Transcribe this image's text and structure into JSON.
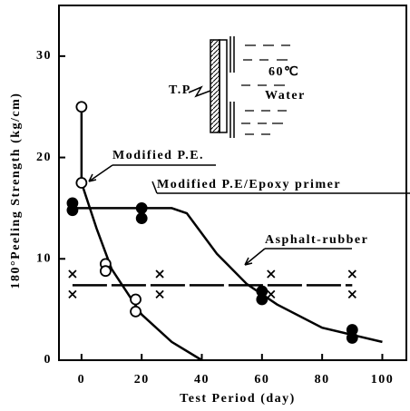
{
  "chart_data": {
    "type": "scatter",
    "xlabel": "Test Period (day)",
    "ylabel": "180°Peeling Strength (kg/cm)",
    "xlim": [
      -7.5,
      108
    ],
    "ylim": [
      0,
      35
    ],
    "xticks": [
      0,
      20,
      40,
      60,
      80,
      100
    ],
    "yticks": [
      0,
      10,
      20,
      30
    ],
    "series": [
      {
        "name": "Modified P.E.",
        "marker": "open-circle",
        "color": "#000",
        "x": [
          0,
          0,
          8,
          8,
          18,
          18
        ],
        "values": [
          25,
          17.5,
          9.5,
          8.8,
          6,
          4.8
        ],
        "curve": {
          "x": [
            0,
            0,
            5,
            10,
            20,
            30,
            40
          ],
          "values": [
            25,
            17.5,
            13,
            9,
            4.5,
            1.8,
            0
          ]
        }
      },
      {
        "name": "Modified P.E/Epoxy primer",
        "marker": "filled-circle",
        "color": "#000",
        "x": [
          -3,
          -3,
          20,
          20,
          60,
          60,
          90,
          90
        ],
        "values": [
          15.5,
          14.8,
          15,
          14,
          6.8,
          6,
          3,
          2.2
        ],
        "curve": {
          "x": [
            -3,
            30,
            35,
            45,
            55,
            65,
            80,
            90,
            100
          ],
          "values": [
            15,
            15,
            14.5,
            10.5,
            7.5,
            5.5,
            3.2,
            2.5,
            1.8
          ]
        }
      },
      {
        "name": "Asphalt-rubber",
        "marker": "x",
        "color": "#000",
        "x": [
          -3,
          -3,
          26,
          26,
          63,
          63,
          90,
          90
        ],
        "values": [
          8.5,
          6.5,
          8.5,
          6.5,
          8.5,
          6.5,
          8.5,
          6.5
        ],
        "curve": {
          "x": [
            -3,
            90
          ],
          "values": [
            7.4,
            7.4
          ]
        }
      }
    ],
    "inset_labels": [
      "T.P",
      "60℃",
      "Water"
    ]
  }
}
